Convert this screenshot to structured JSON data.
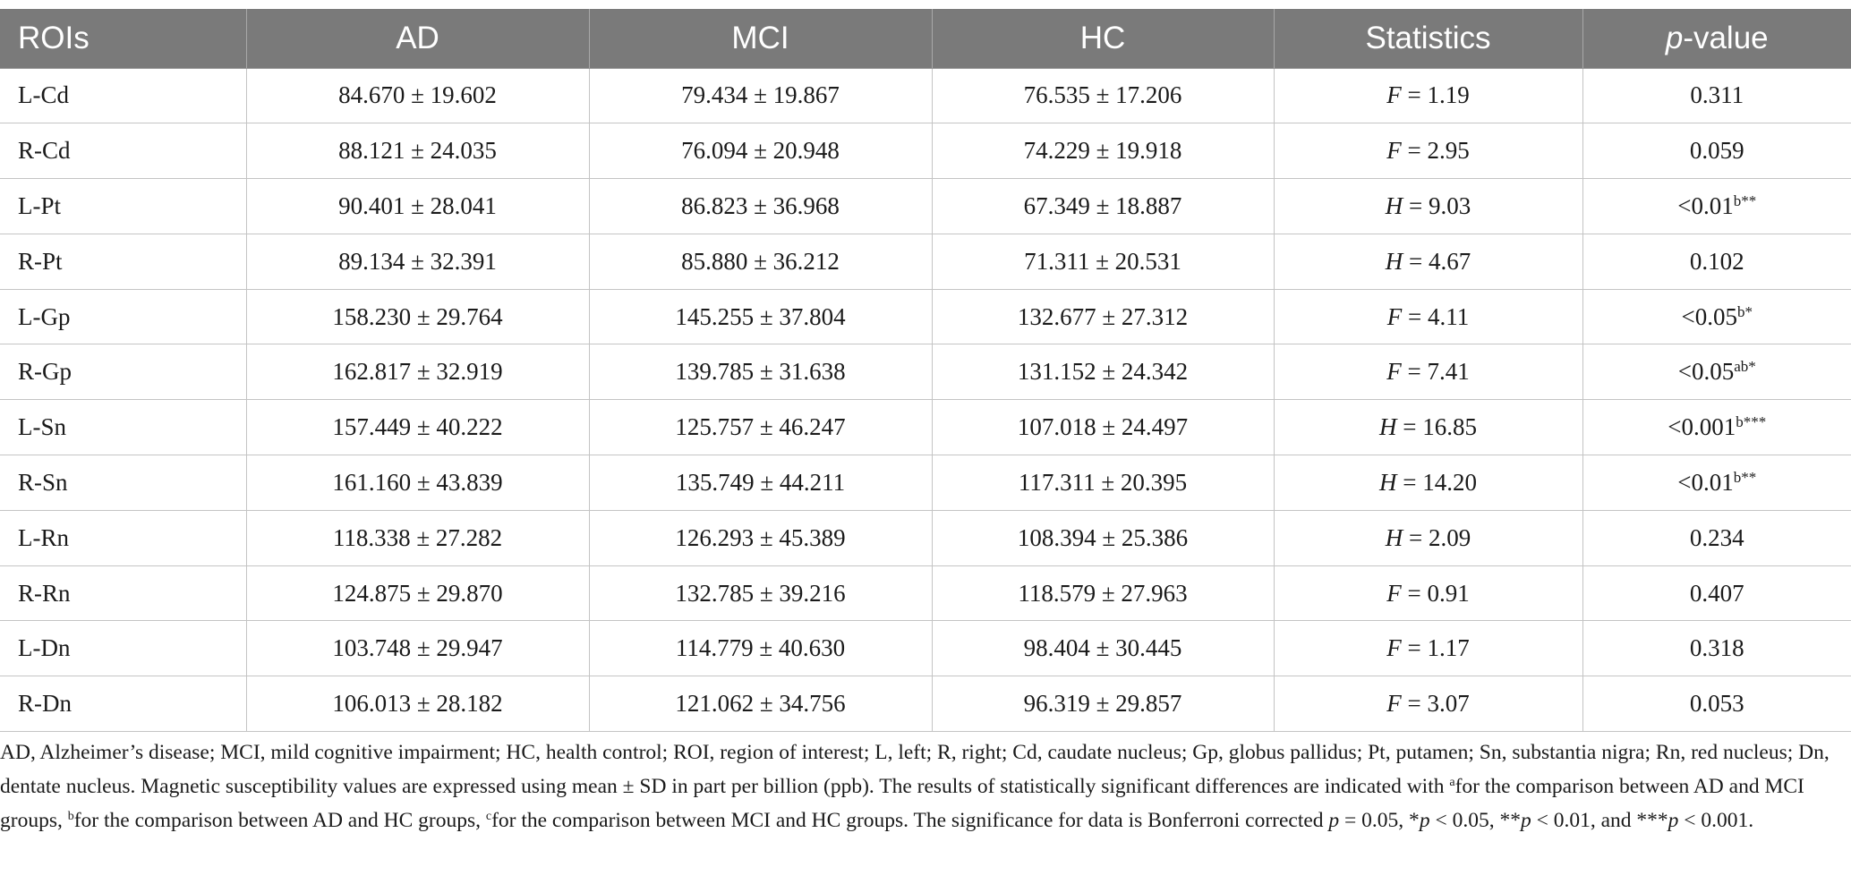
{
  "table": {
    "headers": {
      "rois": "ROIs",
      "ad": "AD",
      "mci": "MCI",
      "hc": "HC",
      "statistics": "Statistics",
      "p_italic": "p",
      "p_suffix": "-value"
    },
    "rows": [
      {
        "roi": "L-Cd",
        "ad": "84.670 ± 19.602",
        "mci": "79.434 ± 19.867",
        "hc": "76.535 ± 17.206",
        "stat_var": "F",
        "stat_val": " = 1.19",
        "p": "0.311",
        "p_sup": ""
      },
      {
        "roi": "R-Cd",
        "ad": "88.121 ± 24.035",
        "mci": "76.094 ± 20.948",
        "hc": "74.229 ± 19.918",
        "stat_var": "F",
        "stat_val": " = 2.95",
        "p": "0.059",
        "p_sup": ""
      },
      {
        "roi": "L-Pt",
        "ad": "90.401 ± 28.041",
        "mci": "86.823 ± 36.968",
        "hc": "67.349 ± 18.887",
        "stat_var": "H",
        "stat_val": " = 9.03",
        "p": "<0.01",
        "p_sup": "b**"
      },
      {
        "roi": "R-Pt",
        "ad": "89.134 ± 32.391",
        "mci": "85.880 ± 36.212",
        "hc": "71.311 ± 20.531",
        "stat_var": "H",
        "stat_val": " = 4.67",
        "p": "0.102",
        "p_sup": ""
      },
      {
        "roi": "L-Gp",
        "ad": "158.230 ± 29.764",
        "mci": "145.255 ± 37.804",
        "hc": "132.677 ± 27.312",
        "stat_var": "F",
        "stat_val": " = 4.11",
        "p": "<0.05",
        "p_sup": "b*"
      },
      {
        "roi": "R-Gp",
        "ad": "162.817 ± 32.919",
        "mci": "139.785 ± 31.638",
        "hc": "131.152 ± 24.342",
        "stat_var": "F",
        "stat_val": " = 7.41",
        "p": "<0.05",
        "p_sup": "ab*"
      },
      {
        "roi": "L-Sn",
        "ad": "157.449 ± 40.222",
        "mci": "125.757 ± 46.247",
        "hc": "107.018 ± 24.497",
        "stat_var": "H",
        "stat_val": " = 16.85",
        "p": "<0.001",
        "p_sup": "b***"
      },
      {
        "roi": "R-Sn",
        "ad": "161.160 ± 43.839",
        "mci": "135.749 ± 44.211",
        "hc": "117.311 ± 20.395",
        "stat_var": "H",
        "stat_val": " = 14.20",
        "p": "<0.01",
        "p_sup": "b**"
      },
      {
        "roi": "L-Rn",
        "ad": "118.338 ± 27.282",
        "mci": "126.293 ± 45.389",
        "hc": "108.394 ± 25.386",
        "stat_var": "H",
        "stat_val": " = 2.09",
        "p": "0.234",
        "p_sup": ""
      },
      {
        "roi": "R-Rn",
        "ad": "124.875 ± 29.870",
        "mci": "132.785 ± 39.216",
        "hc": "118.579 ± 27.963",
        "stat_var": "F",
        "stat_val": " = 0.91",
        "p": "0.407",
        "p_sup": ""
      },
      {
        "roi": "L-Dn",
        "ad": "103.748 ± 29.947",
        "mci": "114.779 ± 40.630",
        "hc": "98.404 ± 30.445",
        "stat_var": "F",
        "stat_val": " = 1.17",
        "p": "0.318",
        "p_sup": ""
      },
      {
        "roi": "R-Dn",
        "ad": "106.013 ± 28.182",
        "mci": "121.062 ± 34.756",
        "hc": "96.319 ± 29.857",
        "stat_var": "F",
        "stat_val": " = 3.07",
        "p": "0.053",
        "p_sup": ""
      }
    ]
  },
  "footnote": {
    "part1": "AD, Alzheimer’s disease; MCI, mild cognitive impairment; HC, health control; ROI, region of interest; L, left; R, right; Cd, caudate nucleus; Gp, globus pallidus; Pt, putamen; Sn, substantia nigra; Rn, red nucleus; Dn, dentate nucleus. Magnetic susceptibility values are expressed using mean ± SD in part per billion (ppb). The results of statistically significant differences are indicated with ",
    "sup_a": "a",
    "part2": "for the comparison between AD and MCI groups, ",
    "sup_b": "b",
    "part3": "for the comparison between AD and HC groups, ",
    "sup_c": "c",
    "part4": "for the comparison between MCI and HC groups. The significance for data is Bonferroni corrected ",
    "p1": "p",
    "part5": " = 0.05, *",
    "p2": "p",
    "part6": " < 0.05, **",
    "p3": "p",
    "part7": " < 0.01, and ***",
    "p4": "p",
    "part8": " < 0.001."
  }
}
